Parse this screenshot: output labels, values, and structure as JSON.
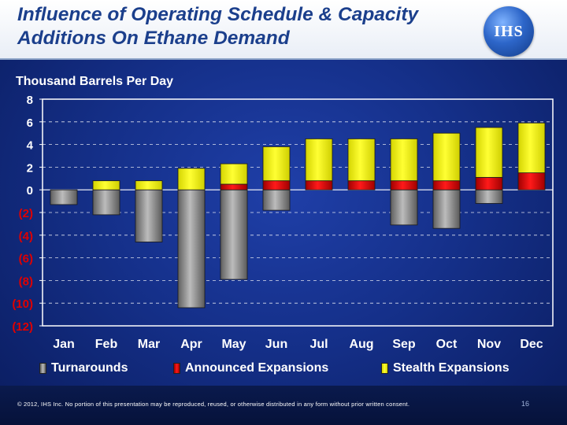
{
  "header": {
    "title_line1": "Influence of Operating Schedule & Capacity",
    "title_line2": "Additions On Ethane Demand",
    "logo_text": "IHS",
    "logo_icon": "ihs-globe-logo"
  },
  "colors": {
    "turnarounds": "#8c8c8c",
    "announced": "#e00000",
    "stealth": "#ffff00"
  },
  "chart_data": {
    "type": "bar",
    "stacked": true,
    "title": "",
    "ylabel": "Thousand Barrels Per Day",
    "xlabel": "",
    "categories": [
      "Jan",
      "Feb",
      "Mar",
      "Apr",
      "May",
      "Jun",
      "Jul",
      "Aug",
      "Sep",
      "Oct",
      "Nov",
      "Dec"
    ],
    "series": [
      {
        "name": "Turnarounds",
        "values": [
          -1.3,
          -2.2,
          -4.6,
          -10.4,
          -7.9,
          -1.8,
          0,
          0,
          -3.1,
          -3.4,
          -1.2,
          0
        ]
      },
      {
        "name": "Announced Expansions",
        "values": [
          0,
          0,
          0,
          0,
          0.5,
          0.8,
          0.8,
          0.8,
          0.8,
          0.8,
          1.1,
          1.5
        ]
      },
      {
        "name": "Stealth Expansions",
        "values": [
          0,
          0.8,
          0.8,
          1.9,
          1.8,
          3.0,
          3.7,
          3.7,
          3.7,
          4.2,
          4.4,
          4.4
        ]
      }
    ],
    "ylim": [
      -12,
      8
    ],
    "yticks": [
      8,
      6,
      4,
      2,
      0,
      -2,
      -4,
      -6,
      -8,
      -10,
      -12
    ],
    "ytick_labels": [
      "8",
      "6",
      "4",
      "2",
      "0",
      "(2)",
      "(4)",
      "(6)",
      "(8)",
      "(10)",
      "(12)"
    ],
    "legend_position": "bottom"
  },
  "legend": {
    "items": [
      {
        "label": "Turnarounds"
      },
      {
        "label": "Announced Expansions"
      },
      {
        "label": "Stealth Expansions"
      }
    ]
  },
  "footer": {
    "copyright": "© 2012, IHS Inc. No portion of this presentation may be reproduced, reused, or otherwise distributed in any form without prior written consent.",
    "page_number": "16"
  }
}
